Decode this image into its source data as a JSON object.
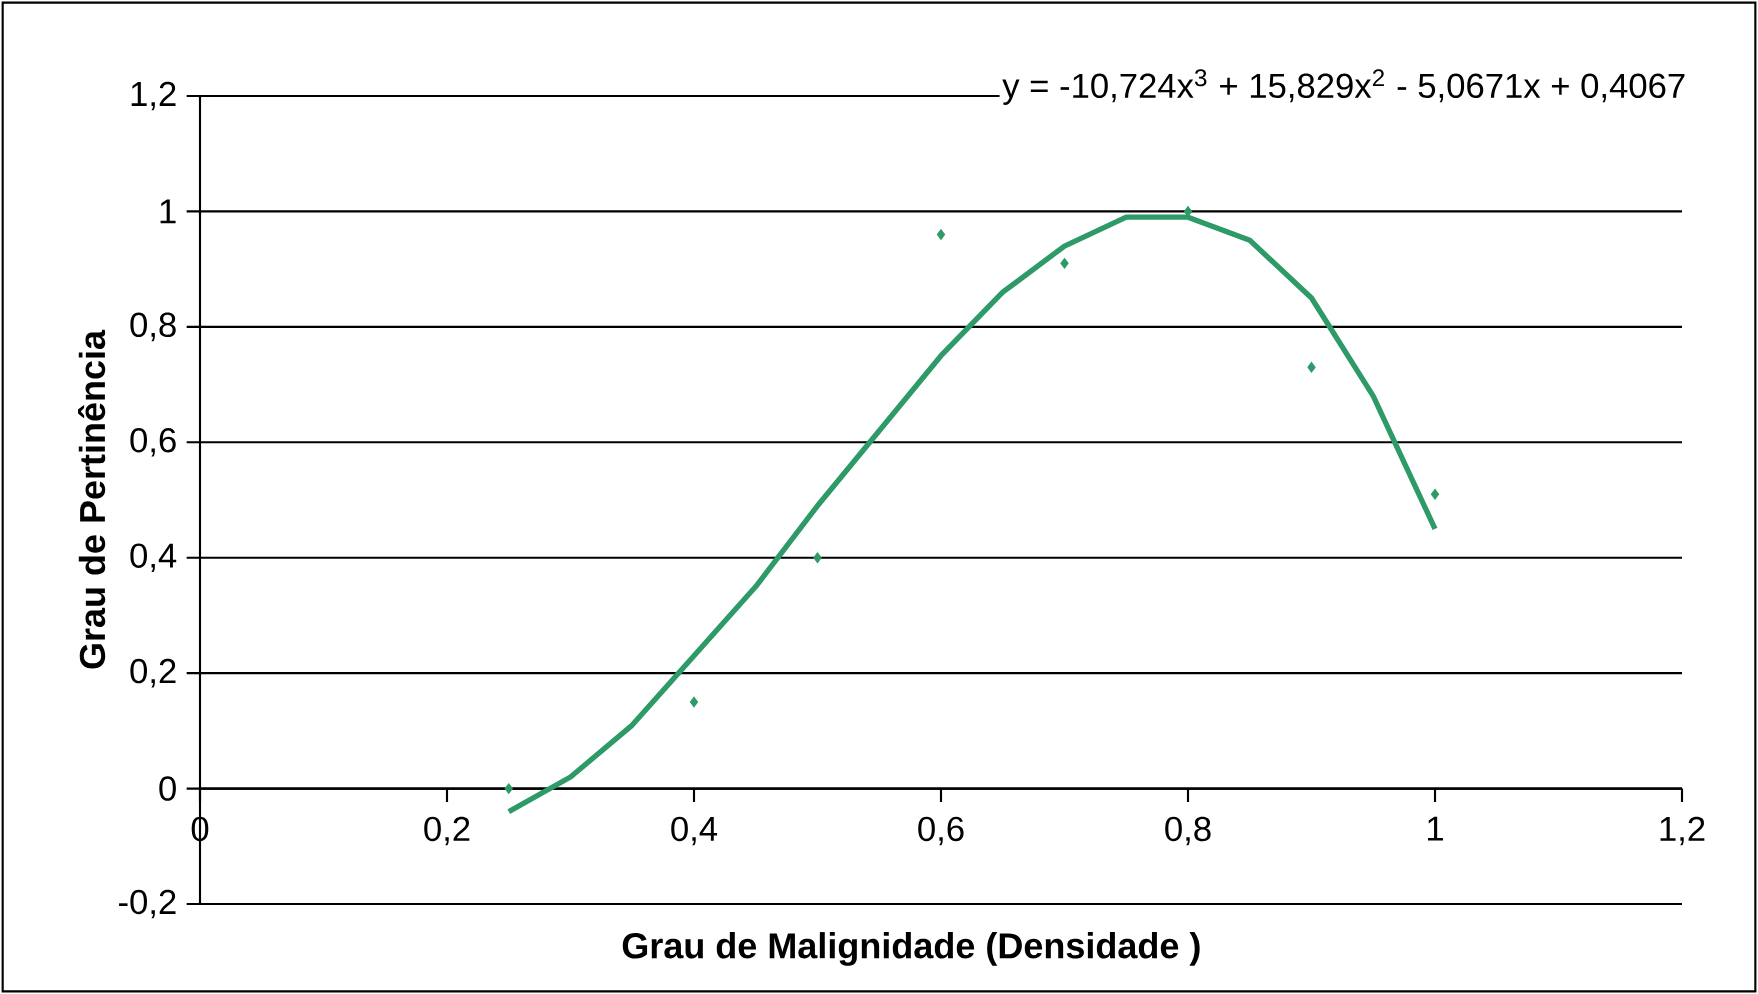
{
  "chart_data": {
    "type": "scatter",
    "xlabel": "Grau de Malignidade (Densidade )",
    "ylabel": "Grau de Pertinência",
    "annotations": [
      "y = -10,724x$^{3}$ + 15,829x$^{2}$ - 5,0671x + 0,4067"
    ],
    "series": [
      {
        "color": "#2e9a68",
        "marker": "diamond",
        "x": [
          0.25,
          0.4,
          0.5,
          0.6,
          0.7,
          0.8,
          0.9,
          1.0
        ],
        "values": [
          0.0,
          0.15,
          0.4,
          0.96,
          0.91,
          1.0,
          0.73,
          0.51
        ]
      },
      {
        "type": "line",
        "color": "#2e9a68",
        "line_style": "solid",
        "x": [
          0.25,
          0.3,
          0.35,
          0.4,
          0.45,
          0.5,
          0.55,
          0.6,
          0.65,
          0.7,
          0.75,
          0.8,
          0.85,
          0.9,
          0.95,
          1.0
        ],
        "values": [
          -0.04,
          0.02,
          0.11,
          0.23,
          0.35,
          0.49,
          0.62,
          0.75,
          0.86,
          0.94,
          0.99,
          0.99,
          0.95,
          0.85,
          0.68,
          0.45
        ]
      }
    ],
    "xlim": [
      0,
      1.2
    ],
    "ylim": [
      -0.2,
      1.2
    ],
    "xticks": [
      0,
      {
        "value": 0.2,
        "label": "0,2"
      },
      {
        "value": 0.4,
        "label": "0,4"
      },
      {
        "value": 0.6,
        "label": "0,6"
      },
      {
        "value": 0.8,
        "label": "0,8"
      },
      1,
      {
        "value": 1.2,
        "label": "1,2"
      }
    ],
    "yticks": [
      {
        "value": -0.2,
        "label": "-0,2"
      },
      0,
      {
        "value": 0.2,
        "label": "0,2"
      },
      {
        "value": 0.4,
        "label": "0,4"
      },
      {
        "value": 0.6,
        "label": "0,6"
      },
      {
        "value": 0.8,
        "label": "0,8"
      },
      1,
      {
        "value": 1.2,
        "label": "1,2"
      }
    ],
    "grid": "y"
  }
}
